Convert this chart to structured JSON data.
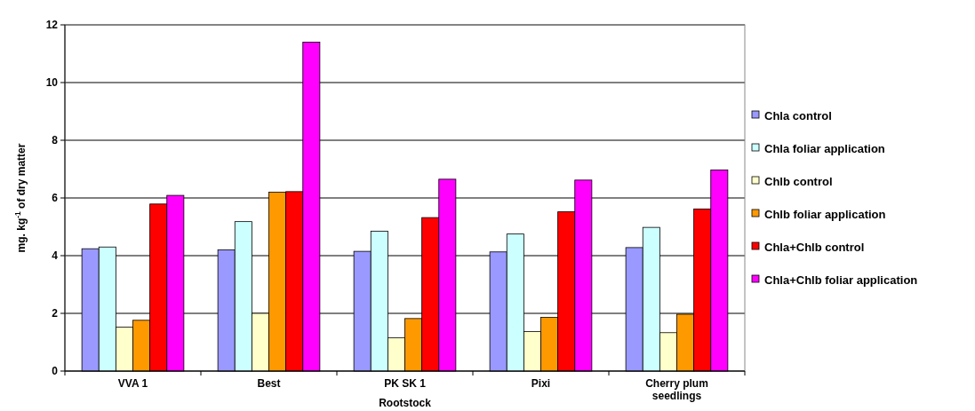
{
  "chart_data": {
    "type": "bar",
    "xlabel": "Rootstock",
    "ylabel": "mg. kg$^{-1}$ of dry matter",
    "categories": [
      "VVA 1",
      "Best",
      "PK SK 1",
      "Pixi",
      "Cherry plum seedlings"
    ],
    "ylim": [
      0,
      12
    ],
    "yticks": [
      0,
      2,
      4,
      6,
      8,
      10,
      12
    ],
    "grid": "y",
    "legend": "right",
    "series": [
      {
        "name": "Chla control",
        "color": "#9999ff",
        "values": [
          4.24,
          4.2,
          4.15,
          4.13,
          4.28
        ]
      },
      {
        "name": "Chla foliar application",
        "color": "#ccffff",
        "values": [
          4.3,
          5.18,
          4.85,
          4.75,
          4.98
        ]
      },
      {
        "name": "Chlb control",
        "color": "#ffffcc",
        "values": [
          1.52,
          2.0,
          1.15,
          1.37,
          1.33
        ]
      },
      {
        "name": "Chlb foliar application",
        "color": "#ff9900",
        "values": [
          1.76,
          6.2,
          1.82,
          1.86,
          1.97
        ]
      },
      {
        "name": "Chla+Chlb control",
        "color": "#ff0000",
        "values": [
          5.79,
          6.22,
          5.32,
          5.52,
          5.62
        ]
      },
      {
        "name": "Chla+Chlb foliar application",
        "color": "#ff00ff",
        "values": [
          6.09,
          11.4,
          6.65,
          6.62,
          6.97
        ]
      }
    ]
  }
}
